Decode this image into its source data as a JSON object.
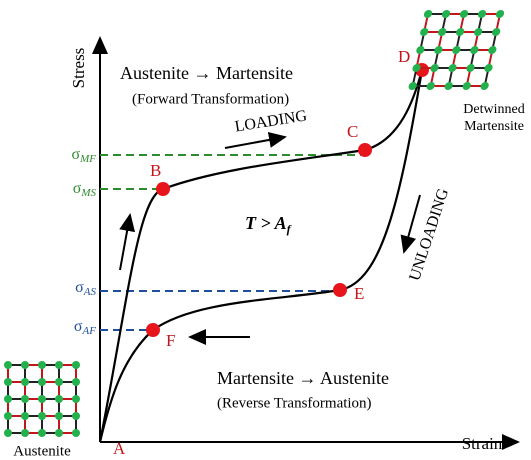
{
  "axes": {
    "y_label": "Stress",
    "x_label": "Strain"
  },
  "points": {
    "a": "A",
    "b": "B",
    "c": "C",
    "d": "D",
    "e": "E",
    "f": "F"
  },
  "forward": {
    "title": "Austenite → Martensite",
    "subtitle": "(Forward Transformation)"
  },
  "reverse": {
    "title": "Martensite → Austenite",
    "subtitle": "(Reverse Transformation)"
  },
  "loading": "LOADING",
  "unloading": "UNLOADING",
  "condition": {
    "text": "T > A",
    "sub": "f"
  },
  "stress_levels": [
    {
      "symbol": "σ",
      "sub": "MF"
    },
    {
      "symbol": "σ",
      "sub": "MS"
    },
    {
      "symbol": "σ",
      "sub": "AS"
    },
    {
      "symbol": "σ",
      "sub": "AF"
    }
  ],
  "austenite_label": "Austenite",
  "martensite_label": [
    "Detwinned",
    "Martensite"
  ]
}
